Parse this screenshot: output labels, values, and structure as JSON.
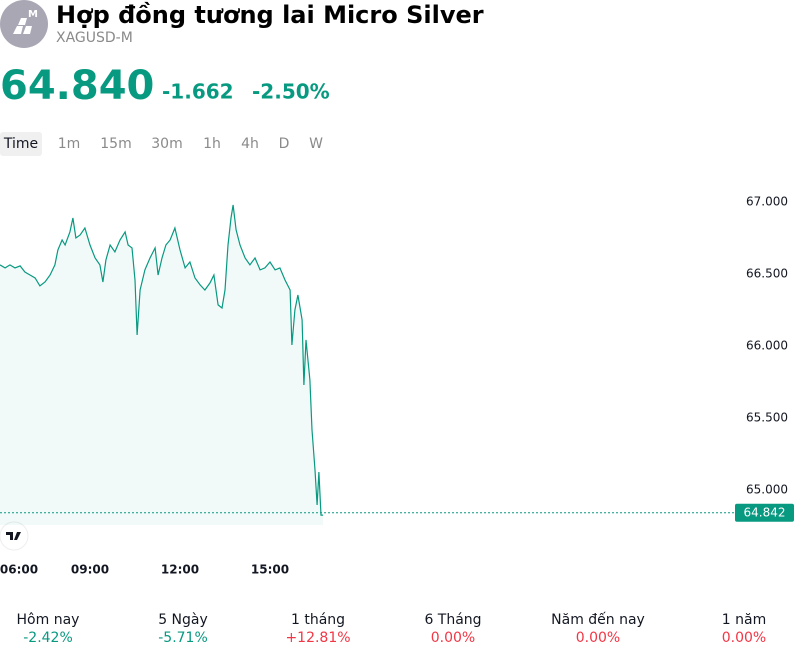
{
  "header": {
    "icon_badge": "M",
    "title": "Hợp đồng tương lai Micro Silver",
    "symbol": "XAGUSD-M",
    "price": "64.840",
    "change": "-1.662",
    "change_pct": "-2.50%"
  },
  "tabs": [
    "Time",
    "1m",
    "15m",
    "30m",
    "1h",
    "4h",
    "D",
    "W"
  ],
  "chart_data": {
    "type": "line",
    "color": "#089981",
    "area": true,
    "grid": false,
    "xlim": [
      6,
      30.5
    ],
    "ylim": [
      64.757,
      67.222
    ],
    "xticks": [
      {
        "value": 6,
        "label": "06:00"
      },
      {
        "value": 9,
        "label": "09:00"
      },
      {
        "value": 12,
        "label": "12:00"
      },
      {
        "value": 15,
        "label": "15:00"
      }
    ],
    "yticks": [
      {
        "value": 65,
        "label": "65.000"
      },
      {
        "value": 65.5,
        "label": "65.500"
      },
      {
        "value": 66,
        "label": "66.000"
      },
      {
        "value": 66.5,
        "label": "66.500"
      },
      {
        "value": 67,
        "label": "67.000"
      }
    ],
    "last_price": 64.842,
    "x": [
      6,
      6.17,
      6.33,
      6.5,
      6.67,
      6.83,
      7,
      7.17,
      7.33,
      7.5,
      7.67,
      7.83,
      7.93,
      8.07,
      8.17,
      8.33,
      8.43,
      8.53,
      8.67,
      8.83,
      9,
      9.17,
      9.33,
      9.43,
      9.53,
      9.67,
      9.83,
      10,
      10.17,
      10.27,
      10.4,
      10.5,
      10.57,
      10.67,
      10.83,
      11,
      11.17,
      11.27,
      11.4,
      11.53,
      11.67,
      11.83,
      12,
      12.17,
      12.33,
      12.5,
      12.67,
      12.83,
      13,
      13.13,
      13.27,
      13.4,
      13.5,
      13.6,
      13.7,
      13.77,
      13.87,
      14,
      14.17,
      14.33,
      14.5,
      14.67,
      14.83,
      15,
      15.17,
      15.33,
      15.5,
      15.67,
      15.73,
      15.83,
      15.93,
      16.07,
      16.13,
      16.2,
      16.33,
      16.4,
      16.5,
      16.57,
      16.63,
      16.7,
      16.77
    ],
    "values": [
      66.563,
      66.542,
      66.563,
      66.542,
      66.556,
      66.514,
      66.493,
      66.472,
      66.417,
      66.444,
      66.493,
      66.563,
      66.667,
      66.736,
      66.701,
      66.792,
      66.889,
      66.75,
      66.771,
      66.819,
      66.701,
      66.611,
      66.563,
      66.444,
      66.597,
      66.701,
      66.653,
      66.736,
      66.792,
      66.701,
      66.681,
      66.458,
      66.076,
      66.389,
      66.528,
      66.611,
      66.681,
      66.493,
      66.611,
      66.701,
      66.736,
      66.819,
      66.667,
      66.542,
      66.583,
      66.472,
      66.424,
      66.389,
      66.438,
      66.493,
      66.285,
      66.264,
      66.389,
      66.701,
      66.889,
      66.979,
      66.806,
      66.701,
      66.611,
      66.563,
      66.611,
      66.528,
      66.542,
      66.583,
      66.528,
      66.542,
      66.458,
      66.389,
      66.007,
      66.25,
      66.354,
      66.181,
      65.729,
      66.042,
      65.764,
      65.417,
      65.139,
      64.896,
      65.125,
      64.826,
      64.826
    ]
  },
  "stats": [
    {
      "label": "Hôm nay",
      "value": "-2.42%",
      "color": "#089981"
    },
    {
      "label": "5 Ngày",
      "value": "-5.71%",
      "color": "#089981"
    },
    {
      "label": "1 tháng",
      "value": "+12.81%",
      "color": "#f23645"
    },
    {
      "label": "6 Tháng",
      "value": "0.00%",
      "color": "#f23645"
    },
    {
      "label": "Năm đến nay",
      "value": "0.00%",
      "color": "#f23645"
    },
    {
      "label": "1 năm",
      "value": "0.00%",
      "color": "#f23645"
    }
  ]
}
